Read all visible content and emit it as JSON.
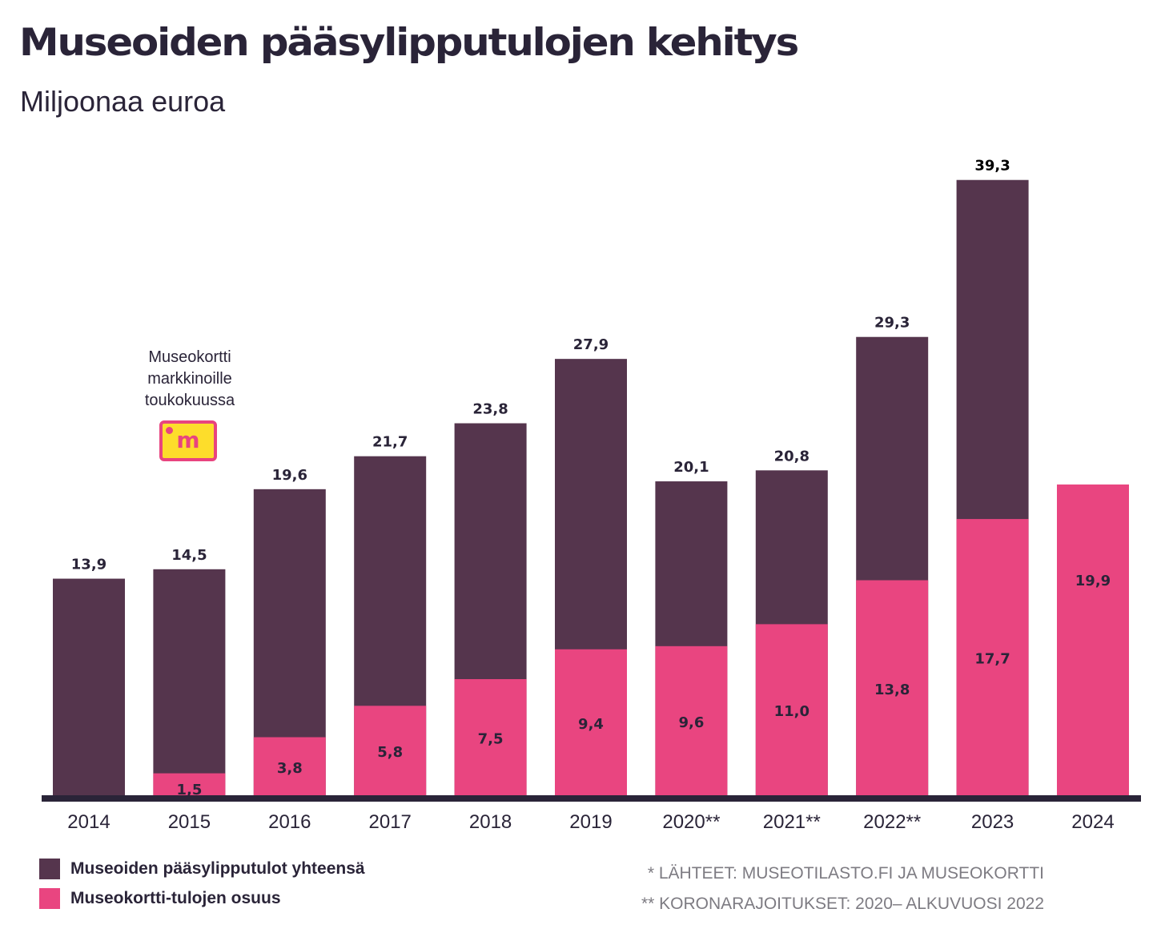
{
  "chart_data": {
    "type": "bar",
    "stacked": false,
    "overlay": true,
    "title": "Museoiden pääsylipputulojen kehitys",
    "subtitle": "Miljoonaa euroa",
    "xlabel": "",
    "ylabel": "Miljoonaa euroa",
    "ylim": [
      0,
      40
    ],
    "grid": false,
    "categories": [
      "2014",
      "2015",
      "2016",
      "2017",
      "2018",
      "2019",
      "2020**",
      "2021**",
      "2022**",
      "2023",
      "2024"
    ],
    "series": [
      {
        "name": "Museoiden pääsylipputulot yhteensä",
        "color": "#55354d",
        "values": [
          13.9,
          14.5,
          19.6,
          21.7,
          23.8,
          27.9,
          20.1,
          20.8,
          29.3,
          39.3,
          null
        ],
        "labels": [
          "13,9",
          "14,5",
          "19,6",
          "21,7",
          "23,8",
          "27,9",
          "20,1",
          "20,8",
          "29,3",
          "39,3",
          ""
        ]
      },
      {
        "name": "Museokortti-tulojen osuus",
        "color": "#e94580",
        "values": [
          null,
          1.5,
          3.8,
          5.8,
          7.5,
          9.4,
          9.6,
          11.0,
          13.8,
          17.7,
          19.9
        ],
        "labels": [
          "",
          "1,5",
          "3,8",
          "5,8",
          "7,5",
          "9,4",
          "9,6",
          "11,0",
          "13,8",
          "17,7",
          "19,9"
        ]
      }
    ],
    "annotation": {
      "text_lines": [
        "Museokortti",
        "markkinoille",
        "toukokuussa"
      ],
      "category": "2015",
      "logo_letter": "m"
    },
    "legend": {
      "placement": "bottom-left",
      "entries": [
        "Museoiden pääsylipputulot yhteensä",
        "Museokortti-tulojen osuus"
      ]
    },
    "notes": [
      "* LÄHTEET: MUSEOTILASTO.FI JA MUSEOKORTTI",
      "** KORONARAJOITUKSET: 2020– ALKUVUOSI 2022"
    ],
    "colors": {
      "total": "#55354d",
      "museokortti": "#e94580",
      "axis": "#2a2438",
      "text": "#2a2438",
      "logo_bg": "#fddd2b"
    }
  }
}
